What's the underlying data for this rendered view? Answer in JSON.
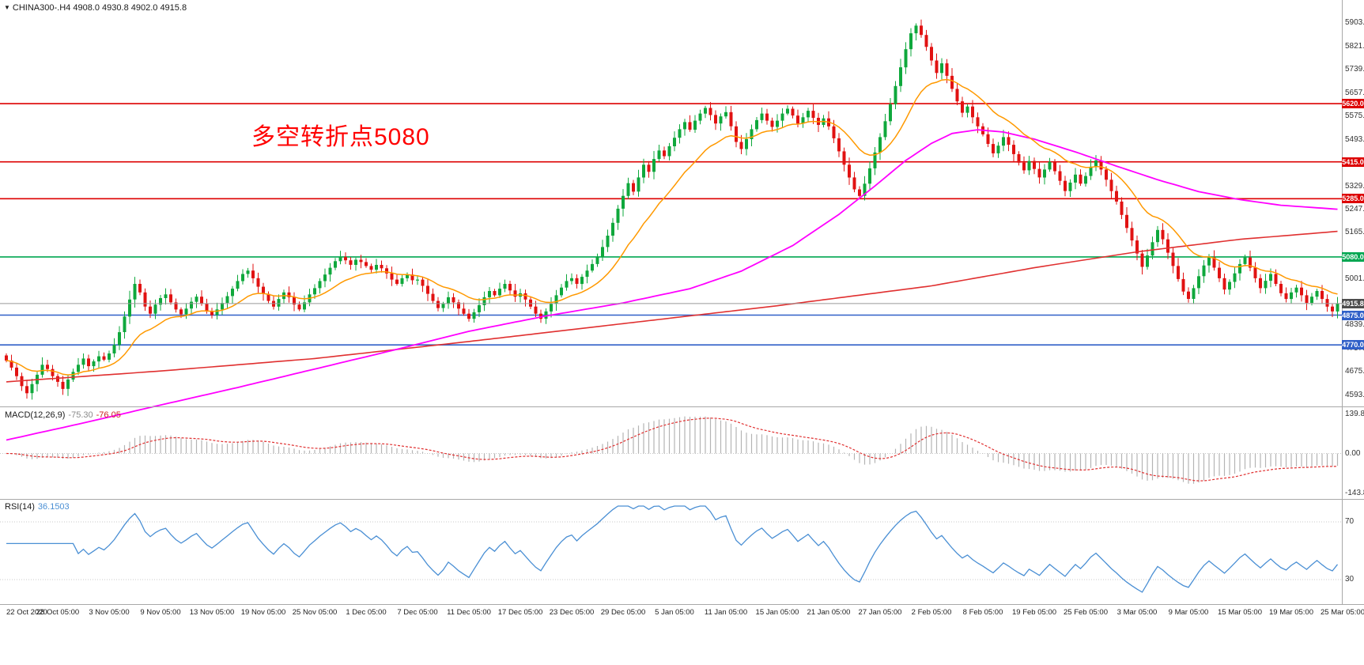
{
  "header": {
    "symbol_line": "CHINA300-.H4  4908.0 4930.8 4902.0 4915.8"
  },
  "annotation": {
    "text": "多空转折点5080",
    "color": "#ff0000"
  },
  "colors": {
    "up": "#0fa83c",
    "down": "#e11212",
    "ma_fast": "#ff9900",
    "ma_mid": "#ff00ff",
    "ma_slow": "#e03030",
    "macd_hist": "#b4b4b4",
    "macd_signal": "#e03030",
    "rsi": "#4a8fd4",
    "price_line": "#999999",
    "price_badge_bg": "#4d4d4d",
    "separator": "#a8a8a8",
    "axis_text": "#333333"
  },
  "price_axis_labels": [
    "5903.0",
    "5821.0",
    "5739.0",
    "5657.0",
    "5575.0",
    "5493.0",
    "5411.0",
    "5329.0",
    "5247.0",
    "5165.0",
    "5083.0",
    "5001.0",
    "4919.0",
    "4839.0",
    "4757.0",
    "4675.0",
    "4593.0"
  ],
  "hlines": [
    {
      "value": 5620.0,
      "label": "5620.0",
      "color": "#dd0000"
    },
    {
      "value": 5415.0,
      "label": "5415.0",
      "color": "#dd0000"
    },
    {
      "value": 5285.0,
      "label": "5285.0",
      "color": "#dd0000"
    },
    {
      "value": 5080.0,
      "label": "5080.0",
      "color": "#00a651"
    },
    {
      "value": 4875.0,
      "label": "4875.0",
      "color": "#3060c8"
    },
    {
      "value": 4770.0,
      "label": "4770.0",
      "color": "#3060c8"
    }
  ],
  "current_price": {
    "value": 4915.8,
    "label": "4915.8"
  },
  "chart_data": {
    "type": "candlestick",
    "symbol": "CHINA300-",
    "timeframe": "H4",
    "ohlc_current": {
      "open": 4908.0,
      "high": 4930.8,
      "low": 4902.0,
      "close": 4915.8
    },
    "price_range": {
      "ymin": 4570,
      "ymax": 5935
    },
    "x_labels": [
      "22 Oct 2020",
      "28 Oct 05:00",
      "3 Nov 05:00",
      "9 Nov 05:00",
      "13 Nov 05:00",
      "19 Nov 05:00",
      "25 Nov 05:00",
      "1 Dec 05:00",
      "7 Dec 05:00",
      "11 Dec 05:00",
      "17 Dec 05:00",
      "23 Dec 05:00",
      "29 Dec 05:00",
      "5 Jan 05:00",
      "11 Jan 05:00",
      "15 Jan 05:00",
      "21 Jan 05:00",
      "27 Jan 05:00",
      "2 Feb 05:00",
      "8 Feb 05:00",
      "19 Feb 05:00",
      "25 Feb 05:00",
      "3 Mar 05:00",
      "9 Mar 05:00",
      "15 Mar 05:00",
      "19 Mar 05:00",
      "25 Mar 05:00"
    ],
    "closes": [
      4715,
      4690,
      4660,
      4625,
      4600,
      4632,
      4665,
      4700,
      4685,
      4660,
      4640,
      4615,
      4648,
      4675,
      4700,
      4722,
      4695,
      4712,
      4730,
      4718,
      4740,
      4770,
      4815,
      4870,
      4930,
      4985,
      4955,
      4905,
      4880,
      4912,
      4935,
      4948,
      4920,
      4895,
      4878,
      4898,
      4922,
      4940,
      4915,
      4890,
      4875,
      4895,
      4918,
      4942,
      4968,
      4995,
      5020,
      5032,
      5005,
      4975,
      4950,
      4925,
      4905,
      4932,
      4955,
      4938,
      4912,
      4895,
      4920,
      4948,
      4970,
      4995,
      5018,
      5042,
      5065,
      5080,
      5068,
      5052,
      5070,
      5062,
      5048,
      5035,
      5052,
      5040,
      5022,
      5000,
      4985,
      5005,
      5018,
      4998,
      5000,
      4978,
      4950,
      4925,
      4900,
      4915,
      4938,
      4920,
      4898,
      4880,
      4862,
      4885,
      4910,
      4938,
      4960,
      4945,
      4968,
      4985,
      4962,
      4940,
      4952,
      4930,
      4905,
      4880,
      4862,
      4888,
      4915,
      4945,
      4972,
      4995,
      5005,
      4985,
      5010,
      5032,
      5055,
      5080,
      5115,
      5155,
      5200,
      5250,
      5295,
      5340,
      5310,
      5360,
      5405,
      5380,
      5425,
      5455,
      5435,
      5470,
      5500,
      5530,
      5555,
      5528,
      5560,
      5585,
      5605,
      5580,
      5550,
      5575,
      5590,
      5540,
      5485,
      5460,
      5495,
      5530,
      5562,
      5585,
      5560,
      5538,
      5560,
      5585,
      5602,
      5578,
      5550,
      5572,
      5595,
      5570,
      5545,
      5568,
      5540,
      5498,
      5452,
      5405,
      5360,
      5318,
      5295,
      5338,
      5392,
      5448,
      5502,
      5558,
      5618,
      5682,
      5748,
      5812,
      5868,
      5895,
      5862,
      5820,
      5772,
      5728,
      5762,
      5718,
      5672,
      5628,
      5588,
      5610,
      5572,
      5540,
      5512,
      5478,
      5445,
      5472,
      5502,
      5475,
      5442,
      5412,
      5385,
      5418,
      5390,
      5360,
      5388,
      5415,
      5382,
      5348,
      5312,
      5342,
      5370,
      5338,
      5365,
      5398,
      5420,
      5388,
      5352,
      5312,
      5275,
      5228,
      5182,
      5138,
      5092,
      5045,
      5085,
      5132,
      5175,
      5142,
      5095,
      5048,
      5002,
      4958,
      4932,
      4970,
      5012,
      5050,
      5078,
      5042,
      5005,
      4965,
      4992,
      5022,
      5055,
      5078,
      5042,
      5005,
      4970,
      4996,
      5020,
      4985,
      4952,
      4932,
      4955,
      4972,
      4945,
      4918,
      4940,
      4960,
      4932,
      4905,
      4888,
      4915.8
    ],
    "extreme_high": 5903.0,
    "ma_mid_anchors": [
      [
        0,
        4435
      ],
      [
        15,
        4495
      ],
      [
        30,
        4558
      ],
      [
        45,
        4620
      ],
      [
        60,
        4685
      ],
      [
        75,
        4750
      ],
      [
        90,
        4818
      ],
      [
        105,
        4872
      ],
      [
        120,
        4918
      ],
      [
        133,
        4968
      ],
      [
        143,
        5030
      ],
      [
        153,
        5120
      ],
      [
        162,
        5230
      ],
      [
        169,
        5330
      ],
      [
        175,
        5420
      ],
      [
        180,
        5480
      ],
      [
        184,
        5515
      ],
      [
        189,
        5528
      ],
      [
        194,
        5520
      ],
      [
        200,
        5495
      ],
      [
        208,
        5450
      ],
      [
        216,
        5400
      ],
      [
        224,
        5352
      ],
      [
        232,
        5310
      ],
      [
        240,
        5282
      ],
      [
        248,
        5262
      ],
      [
        259,
        5248
      ]
    ],
    "ma_slow_anchors": [
      [
        0,
        4640
      ],
      [
        30,
        4678
      ],
      [
        60,
        4722
      ],
      [
        90,
        4782
      ],
      [
        120,
        4845
      ],
      [
        150,
        4908
      ],
      [
        180,
        4978
      ],
      [
        200,
        5042
      ],
      [
        220,
        5098
      ],
      [
        240,
        5142
      ],
      [
        259,
        5170
      ]
    ],
    "macd": {
      "name": "MACD(12,26,9)",
      "value_main": "-75.30",
      "value_signal": "-76.05",
      "scale_labels": [
        "139.86",
        "0.00",
        "-143.82"
      ],
      "scale_max": 139.86,
      "scale_min": -143.82
    },
    "rsi": {
      "name": "RSI(14)",
      "value": "36.1503",
      "levels": [
        "70",
        "30"
      ]
    }
  }
}
